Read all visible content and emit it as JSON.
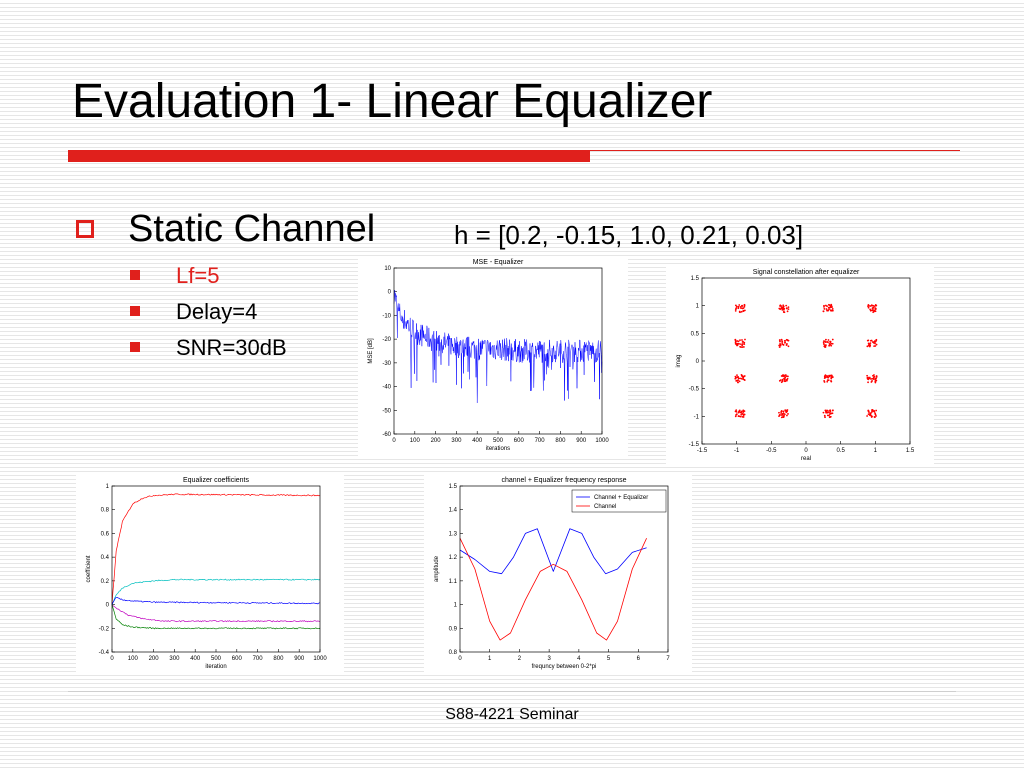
{
  "slide": {
    "title": "Evaluation 1- Linear Equalizer",
    "bullet": {
      "main": "Static Channel",
      "detail": "h = [0.2, -0.15, 1.0, 0.21, 0.03]"
    },
    "sub_items": [
      {
        "text": "Lf=5",
        "color": "#e0201c"
      },
      {
        "text": "Delay=4",
        "color": "#000000"
      },
      {
        "text": "SNR=30dB",
        "color": "#000000"
      }
    ],
    "footer": "S88-4221 Seminar",
    "accent_color": "#e0201c"
  },
  "chart_data": [
    {
      "id": "mse",
      "type": "line",
      "title": "MSE - Equalizer",
      "xlabel": "iterations",
      "ylabel": "MSE [dB]",
      "xlim": [
        0,
        1000
      ],
      "ylim": [
        -60,
        10
      ],
      "xticks": [
        0,
        100,
        200,
        300,
        400,
        500,
        600,
        700,
        800,
        900,
        1000
      ],
      "yticks": [
        10,
        0,
        -10,
        -20,
        -30,
        -40,
        -50,
        -60
      ],
      "series": [
        {
          "color": "#0000ff",
          "x": [
            0,
            10,
            20,
            40,
            60,
            80,
            100,
            150,
            200,
            250,
            300,
            400,
            500,
            600,
            700,
            800,
            900,
            1000
          ],
          "y": [
            0,
            -4,
            -8,
            -11,
            -13,
            -15,
            -17,
            -19,
            -21,
            -22,
            -23,
            -24,
            -24,
            -25,
            -25,
            -25,
            -25,
            -25
          ]
        }
      ]
    },
    {
      "id": "constellation",
      "type": "scatter",
      "title": "Signal constellation after equalizer",
      "xlabel": "real",
      "ylabel": "imag",
      "xlim": [
        -1.5,
        1.5
      ],
      "ylim": [
        -1.5,
        1.5
      ],
      "xticks": [
        -1.5,
        -1,
        -0.5,
        0,
        0.5,
        1,
        1.5
      ],
      "yticks": [
        1.5,
        1,
        0.5,
        0,
        -0.5,
        -1,
        -1.5
      ],
      "series": [
        {
          "color": "#ff0000",
          "x": [
            -0.95,
            -0.32,
            0.32,
            0.95,
            -0.95,
            -0.32,
            0.32,
            0.95,
            -0.95,
            -0.32,
            0.32,
            0.95,
            -0.95,
            -0.32,
            0.32,
            0.95
          ],
          "y": [
            0.95,
            0.95,
            0.95,
            0.95,
            0.32,
            0.32,
            0.32,
            0.32,
            -0.32,
            -0.32,
            -0.32,
            -0.32,
            -0.95,
            -0.95,
            -0.95,
            -0.95
          ]
        }
      ]
    },
    {
      "id": "coefficients",
      "type": "line",
      "title": "Equalizer coefficients",
      "xlabel": "iteration",
      "ylabel": "coefficient",
      "xlim": [
        0,
        1000
      ],
      "ylim": [
        -0.4,
        1
      ],
      "xticks": [
        0,
        100,
        200,
        300,
        400,
        500,
        600,
        700,
        800,
        900,
        1000
      ],
      "yticks": [
        1,
        0.8,
        0.6,
        0.4,
        0.2,
        0,
        -0.2,
        -0.4
      ],
      "series": [
        {
          "color": "#ff0000",
          "x": [
            0,
            20,
            50,
            100,
            150,
            200,
            300,
            1000
          ],
          "y": [
            0,
            0.45,
            0.7,
            0.85,
            0.9,
            0.92,
            0.93,
            0.92
          ]
        },
        {
          "color": "#00bfbf",
          "x": [
            0,
            20,
            50,
            100,
            200,
            300,
            1000
          ],
          "y": [
            0,
            0.08,
            0.14,
            0.18,
            0.2,
            0.21,
            0.21
          ]
        },
        {
          "color": "#0000ff",
          "x": [
            0,
            20,
            50,
            100,
            200,
            1000
          ],
          "y": [
            0,
            0.06,
            0.04,
            0.03,
            0.02,
            0.01
          ]
        },
        {
          "color": "#bf00bf",
          "x": [
            0,
            30,
            80,
            150,
            250,
            1000
          ],
          "y": [
            0,
            -0.04,
            -0.09,
            -0.12,
            -0.14,
            -0.14
          ]
        },
        {
          "color": "#008000",
          "x": [
            0,
            20,
            50,
            100,
            200,
            1000
          ],
          "y": [
            0,
            -0.12,
            -0.17,
            -0.19,
            -0.2,
            -0.2
          ]
        }
      ]
    },
    {
      "id": "frequency",
      "type": "line",
      "title": "channel + Equalizer frequency response",
      "xlabel": "frequncy between 0-2*pi",
      "ylabel": "amplitude",
      "xlim": [
        0,
        7
      ],
      "ylim": [
        0.8,
        1.5
      ],
      "xticks": [
        0,
        1,
        2,
        3,
        4,
        5,
        6,
        7
      ],
      "yticks": [
        1.5,
        1.4,
        1.3,
        1.2,
        1.1,
        1,
        0.9,
        0.8
      ],
      "legend_position": "top-right",
      "series": [
        {
          "name": "Channel + Equalizer",
          "color": "#0000ff",
          "x": [
            0,
            0.5,
            1.0,
            1.4,
            1.8,
            2.2,
            2.6,
            3.14,
            3.7,
            4.1,
            4.5,
            4.9,
            5.3,
            5.8,
            6.28
          ],
          "y": [
            1.23,
            1.19,
            1.14,
            1.13,
            1.2,
            1.3,
            1.32,
            1.14,
            1.32,
            1.3,
            1.2,
            1.13,
            1.15,
            1.22,
            1.24
          ]
        },
        {
          "name": "Channel",
          "color": "#ff0000",
          "x": [
            0,
            0.5,
            1.0,
            1.35,
            1.7,
            2.2,
            2.7,
            3.14,
            3.6,
            4.1,
            4.6,
            4.93,
            5.3,
            5.8,
            6.28
          ],
          "y": [
            1.28,
            1.15,
            0.93,
            0.85,
            0.88,
            1.02,
            1.14,
            1.17,
            1.14,
            1.02,
            0.88,
            0.85,
            0.93,
            1.15,
            1.28
          ]
        }
      ]
    }
  ]
}
